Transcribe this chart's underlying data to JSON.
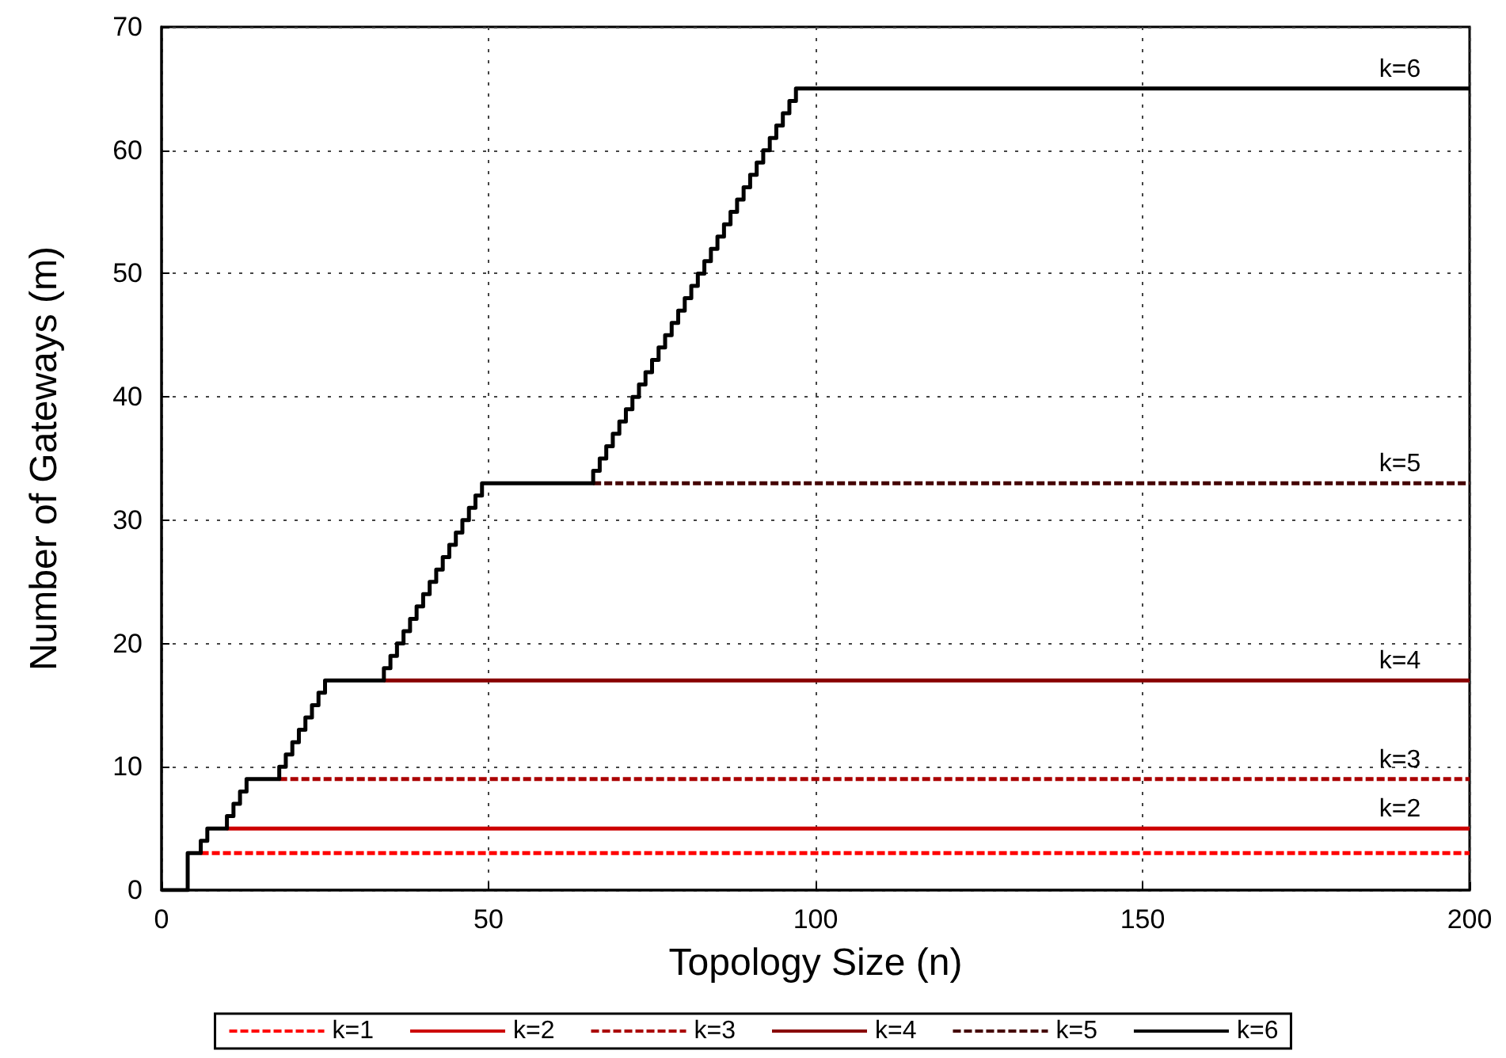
{
  "chart_data": {
    "type": "step",
    "xlabel": "Topology Size (n)",
    "ylabel": "Number of Gateways (m)",
    "xlim": [
      0,
      200
    ],
    "xticks": [
      0,
      50,
      100,
      150,
      200
    ],
    "ylim": [
      0,
      70
    ],
    "yticks": [
      0,
      10,
      20,
      30,
      40,
      50,
      60,
      70
    ],
    "grid": true,
    "legend": "bottom",
    "marker": "none",
    "series": [
      {
        "name": "k=1",
        "color": "#ff0000",
        "line_style": "dashed",
        "x": [
          6,
          200
        ],
        "values": [
          3,
          3
        ]
      },
      {
        "name": "k=2",
        "color": "#cc0000",
        "line_style": "solid",
        "x": [
          10,
          200
        ],
        "values": [
          5,
          5
        ]
      },
      {
        "name": "k=3",
        "color": "#aa0000",
        "line_style": "dashed",
        "x": [
          18,
          200
        ],
        "values": [
          9,
          9
        ]
      },
      {
        "name": "k=4",
        "color": "#880000",
        "line_style": "solid",
        "x": [
          34,
          200
        ],
        "values": [
          17,
          17
        ]
      },
      {
        "name": "k=5",
        "color": "#440000",
        "line_style": "dashed",
        "x": [
          66,
          200
        ],
        "values": [
          33,
          33
        ]
      },
      {
        "name": "k=6",
        "color": "#000000",
        "line_style": "solid",
        "x": [
          0,
          4,
          6,
          7,
          10,
          11,
          12,
          13,
          18,
          19,
          20,
          21,
          22,
          23,
          24,
          25,
          34,
          35,
          36,
          37,
          38,
          39,
          40,
          41,
          42,
          43,
          44,
          45,
          46,
          47,
          48,
          49,
          66,
          67,
          68,
          69,
          70,
          71,
          72,
          73,
          74,
          75,
          76,
          77,
          78,
          79,
          80,
          81,
          82,
          83,
          84,
          85,
          86,
          87,
          88,
          89,
          90,
          91,
          92,
          93,
          94,
          95,
          96,
          97,
          200
        ],
        "values": [
          0,
          3,
          4,
          5,
          6,
          7,
          8,
          9,
          10,
          11,
          12,
          13,
          14,
          15,
          16,
          17,
          18,
          19,
          20,
          21,
          22,
          23,
          24,
          25,
          26,
          27,
          28,
          29,
          30,
          31,
          32,
          33,
          34,
          35,
          36,
          37,
          38,
          39,
          40,
          41,
          42,
          43,
          44,
          45,
          46,
          47,
          48,
          49,
          50,
          51,
          52,
          53,
          54,
          55,
          56,
          57,
          58,
          59,
          60,
          61,
          62,
          63,
          64,
          65,
          65
        ]
      }
    ],
    "annotations": [
      {
        "text": "k=2",
        "y": 5
      },
      {
        "text": "k=3",
        "y": 9
      },
      {
        "text": "k=4",
        "y": 17
      },
      {
        "text": "k=5",
        "y": 33
      },
      {
        "text": "k=6",
        "y": 65
      }
    ]
  }
}
